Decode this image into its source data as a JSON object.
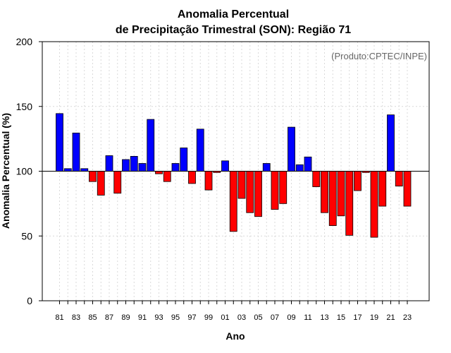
{
  "chart_data": {
    "type": "bar",
    "title_line1": "Anomalia Percentual",
    "title_line2": "de Precipitação Trimestral (SON): Região 71",
    "xlabel": "Ano",
    "ylabel": "Anomalia Percentual (%)",
    "credit": "(Produto:CPTEC/INPE)",
    "ylim": [
      0,
      200
    ],
    "yticks": [
      "0",
      "50",
      "100",
      "150",
      "200"
    ],
    "baseline": 100,
    "colors": {
      "above": "#0000ff",
      "below": "#ff0000"
    },
    "years": [
      "81",
      "82",
      "83",
      "84",
      "85",
      "86",
      "87",
      "88",
      "89",
      "90",
      "91",
      "92",
      "93",
      "94",
      "95",
      "96",
      "97",
      "98",
      "99",
      "00",
      "01",
      "02",
      "03",
      "04",
      "05",
      "06",
      "07",
      "08",
      "09",
      "10",
      "11",
      "12",
      "13",
      "14",
      "15",
      "16",
      "17",
      "18",
      "19",
      "20",
      "21",
      "22",
      "23"
    ],
    "xtick_labels": [
      "81",
      "83",
      "85",
      "87",
      "89",
      "91",
      "93",
      "95",
      "97",
      "99",
      "01",
      "03",
      "05",
      "07",
      "09",
      "11",
      "13",
      "15",
      "17",
      "19",
      "21",
      "23"
    ],
    "values": [
      144.5,
      102,
      129.5,
      102,
      92,
      81.5,
      112,
      83,
      109,
      111.5,
      106,
      140,
      98,
      92,
      106,
      118,
      90.5,
      132.5,
      85.5,
      99,
      108,
      53.5,
      79,
      68,
      65,
      106,
      70.5,
      75,
      134,
      105,
      111,
      88,
      68,
      58,
      65.5,
      50.5,
      85,
      99,
      49,
      73,
      143.5,
      88.5,
      73
    ]
  }
}
